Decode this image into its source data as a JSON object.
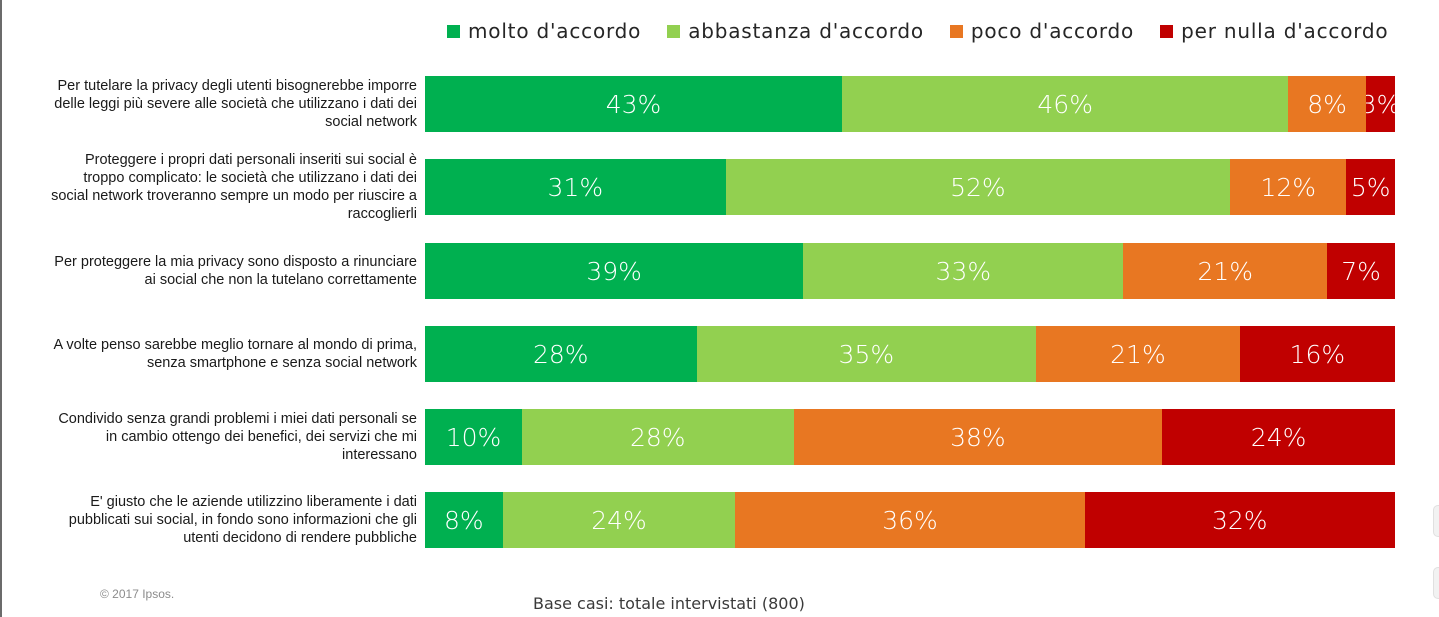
{
  "legend": [
    {
      "label": "molto d'accordo",
      "color": "#00b050"
    },
    {
      "label": "abbastanza d'accordo",
      "color": "#92d050"
    },
    {
      "label": "poco d'accordo",
      "color": "#e87722"
    },
    {
      "label": "per nulla d'accordo",
      "color": "#c00000"
    }
  ],
  "chart_data": {
    "type": "bar",
    "orientation": "horizontal",
    "stacked": true,
    "title": "",
    "xlabel": "",
    "ylabel": "",
    "xlim": [
      0,
      100
    ],
    "legend_position": "top",
    "grid": false,
    "value_suffix": "%",
    "categories": [
      "Per tutelare la privacy degli utenti bisognerebbe imporre delle leggi più severe alle società che utilizzano i dati dei social network",
      "Proteggere i propri dati personali inseriti sui social è troppo complicato: le società che utilizzano i dati dei social network troveranno sempre un modo per riuscire a raccoglierli",
      "Per proteggere la mia privacy sono disposto a rinunciare ai social che non la tutelano correttamente",
      "A volte penso sarebbe meglio tornare al mondo di prima, senza smartphone e senza social network",
      "Condivido senza grandi problemi i miei dati personali se in cambio ottengo dei benefici, dei servizi che mi interessano",
      "E' giusto che le aziende utilizzino liberamente i dati pubblicati sui social, in fondo sono informazioni che gli utenti decidono di rendere pubbliche"
    ],
    "label_lines": [
      [
        "Per tutelare la privacy degli utenti bisognerebbe imporre",
        "delle leggi più severe alle società che utilizzano i dati dei",
        "social network"
      ],
      [
        "Proteggere i propri dati personali inseriti sui social è",
        "troppo complicato: le società che utilizzano i dati dei",
        "social network troveranno sempre un modo per riuscire a",
        "raccoglierli"
      ],
      [
        "Per proteggere la mia privacy sono disposto a rinunciare",
        "ai social che non la tutelano correttamente"
      ],
      [
        "A volte penso sarebbe meglio tornare al mondo di prima,",
        "senza smartphone e senza social network"
      ],
      [
        "Condivido senza grandi problemi i miei dati personali se",
        "in cambio ottengo dei benefici, dei servizi che mi",
        "interessano"
      ],
      [
        "E' giusto che le aziende utilizzino liberamente i dati",
        "pubblicati sui social, in fondo sono informazioni che gli",
        "utenti decidono di rendere pubbliche"
      ]
    ],
    "series": [
      {
        "name": "molto d'accordo",
        "color": "#00b050",
        "values": [
          43,
          31,
          39,
          28,
          10,
          8
        ]
      },
      {
        "name": "abbastanza d'accordo",
        "color": "#92d050",
        "values": [
          46,
          52,
          33,
          35,
          28,
          24
        ]
      },
      {
        "name": "poco d'accordo",
        "color": "#e87722",
        "values": [
          8,
          12,
          21,
          21,
          38,
          36
        ]
      },
      {
        "name": "per nulla d'accordo",
        "color": "#c00000",
        "values": [
          3,
          5,
          7,
          16,
          24,
          32
        ]
      }
    ]
  },
  "footer": {
    "copyright": "© 2017 Ipsos.",
    "base": "Base casi: totale intervistati (800)"
  }
}
